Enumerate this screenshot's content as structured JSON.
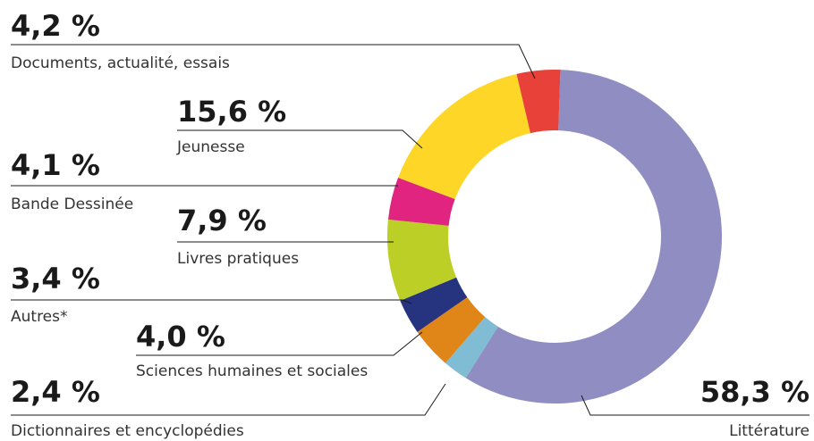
{
  "chart_data": {
    "type": "donut",
    "categories": [
      "Littérature",
      "Dictionnaires et encyclopédies",
      "Sciences humaines et sociales",
      "Autres*",
      "Livres pratiques",
      "Bande Dessinée",
      "Jeunesse",
      "Documents, actualité, essais"
    ],
    "values": [
      58.3,
      2.4,
      4.0,
      3.4,
      7.9,
      4.1,
      15.6,
      4.2
    ],
    "value_labels": [
      "58,3 %",
      "2,4 %",
      "4,0 %",
      "3,4 %",
      "7,9 %",
      "4,1 %",
      "15,6 %",
      "4,2 %"
    ],
    "colors": [
      "#8f8dc1",
      "#80bcd3",
      "#e08517",
      "#263480",
      "#bccf27",
      "#e0247f",
      "#fdd628",
      "#e8413a"
    ]
  }
}
